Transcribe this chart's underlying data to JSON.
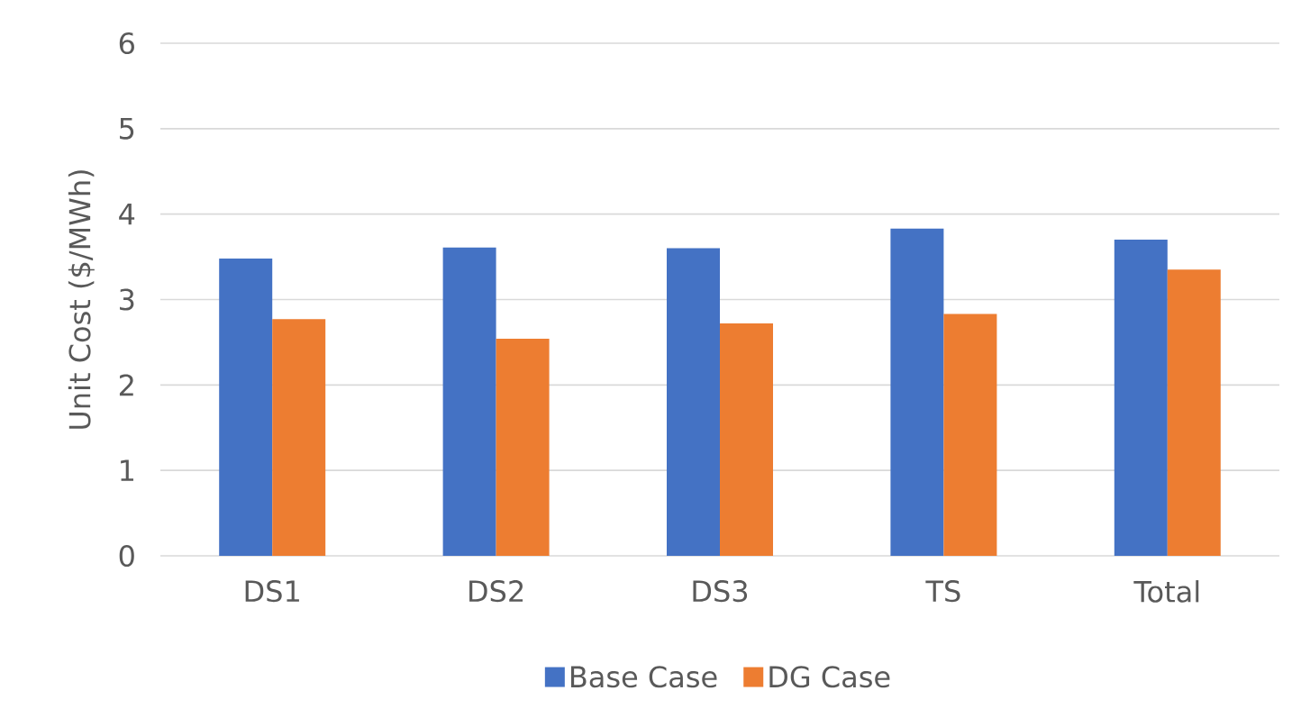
{
  "chart_data": {
    "type": "bar",
    "ylabel": "Unit Cost ($/MWh)",
    "categories": [
      "DS1",
      "DS2",
      "DS3",
      "TS",
      "Total"
    ],
    "series": [
      {
        "name": "Base Case",
        "color": "#4472c4",
        "values": [
          3.48,
          3.61,
          3.6,
          3.83,
          3.7
        ]
      },
      {
        "name": "DG Case",
        "color": "#ed7d31",
        "values": [
          2.77,
          2.54,
          2.72,
          2.83,
          3.35
        ]
      }
    ],
    "ylim": [
      0,
      6
    ],
    "yticks": [
      0,
      1,
      2,
      3,
      4,
      5,
      6
    ],
    "grid": "y",
    "legend": "bottom"
  }
}
